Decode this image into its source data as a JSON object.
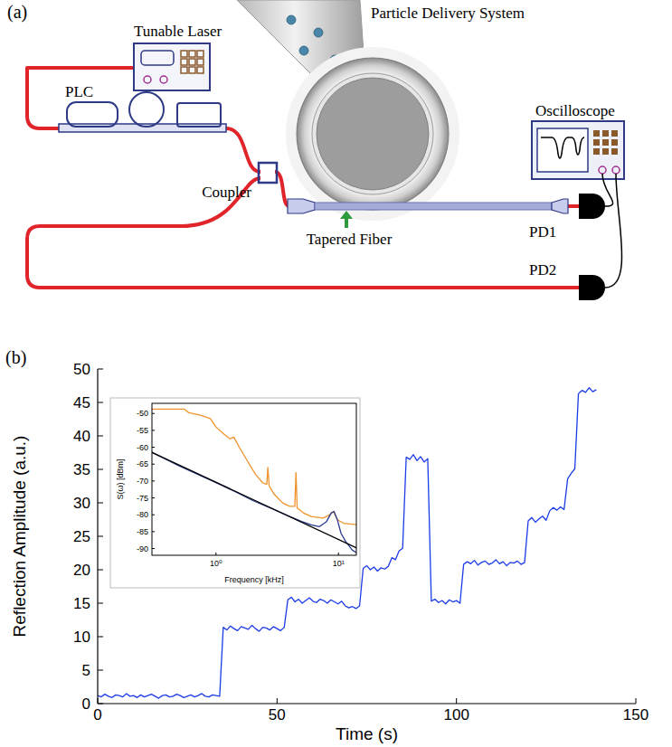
{
  "panel_labels": [
    "(a)",
    "(b)"
  ],
  "diagram": {
    "title": "Particle Delivery System",
    "labels": {
      "laser": "Tunable Laser",
      "plc": "PLC",
      "coupler": "Coupler",
      "fiber": "Tapered Fiber",
      "scope": "Oscilloscope",
      "pd1": "PD1",
      "pd2": "PD2"
    }
  },
  "chart_data": [
    {
      "type": "line",
      "x_label": "Time (s)",
      "y_label": "Reflection Amplitude (a.u.)",
      "color": "#1c3ce8",
      "grid": false,
      "xlim": [
        0,
        150
      ],
      "xticks": [
        0,
        50,
        100,
        150
      ],
      "ylim": [
        0,
        50
      ],
      "yticks": [
        0,
        5,
        10,
        15,
        20,
        25,
        30,
        35,
        40,
        45,
        50
      ],
      "x": [
        0,
        1,
        2,
        3,
        4,
        5,
        6,
        7,
        8,
        9,
        10,
        11,
        12,
        13,
        14,
        15,
        16,
        17,
        18,
        19,
        20,
        21,
        22,
        23,
        24,
        25,
        26,
        27,
        28,
        29,
        30,
        31,
        32,
        33,
        34,
        35,
        36,
        37,
        38,
        39,
        40,
        41,
        42,
        43,
        44,
        45,
        46,
        47,
        48,
        49,
        50,
        51,
        52,
        53,
        54,
        55,
        56,
        57,
        58,
        59,
        60,
        61,
        62,
        63,
        64,
        65,
        66,
        67,
        68,
        69,
        70,
        71,
        72,
        73,
        74,
        75,
        76,
        77,
        78,
        79,
        80,
        81,
        82,
        83,
        84,
        85,
        86,
        87,
        88,
        89,
        90,
        91,
        92,
        93,
        94,
        95,
        96,
        97,
        98,
        99,
        100,
        101,
        102,
        103,
        104,
        105,
        106,
        107,
        108,
        109,
        110,
        111,
        112,
        113,
        114,
        115,
        116,
        117,
        118,
        119,
        120,
        121,
        122,
        123,
        124,
        125,
        126,
        127,
        128,
        129,
        130,
        131,
        132,
        133,
        134,
        135,
        136,
        137,
        138,
        139
      ],
      "values": [
        1.2,
        1.0,
        1.4,
        1.1,
        0.9,
        1.3,
        1.2,
        1.0,
        1.5,
        1.1,
        1.2,
        0.9,
        1.3,
        1.0,
        1.2,
        1.4,
        1.1,
        0.8,
        1.2,
        1.3,
        1.0,
        1.1,
        1.4,
        1.2,
        0.9,
        1.1,
        1.3,
        1.0,
        1.2,
        1.5,
        1.1,
        1.0,
        1.3,
        1.2,
        1.1,
        11.4,
        11.0,
        11.6,
        11.2,
        10.9,
        11.5,
        11.3,
        11.1,
        11.7,
        11.2,
        10.8,
        11.4,
        11.3,
        11.0,
        11.5,
        11.2,
        10.9,
        11.4,
        15.5,
        15.9,
        15.2,
        15.6,
        15.0,
        15.4,
        15.8,
        15.3,
        15.1,
        15.6,
        15.4,
        15.0,
        15.5,
        15.2,
        14.9,
        15.3,
        14.6,
        14.3,
        14.5,
        14.2,
        14.6,
        20.2,
        20.6,
        20.0,
        20.4,
        19.8,
        20.3,
        20.1,
        20.5,
        21.8,
        21.5,
        22.8,
        23.2,
        36.8,
        36.5,
        37.2,
        36.3,
        36.9,
        36.1,
        36.6,
        15.3,
        15.6,
        15.1,
        15.4,
        14.9,
        15.5,
        15.2,
        15.4,
        15.0,
        20.8,
        21.2,
        20.9,
        21.4,
        20.7,
        21.1,
        21.3,
        20.8,
        21.0,
        21.5,
        20.9,
        21.2,
        20.6,
        21.1,
        21.0,
        21.3,
        20.8,
        21.1,
        27.3,
        27.8,
        27.1,
        27.6,
        28.0,
        27.4,
        28.8,
        29.3,
        28.9,
        29.4,
        29.0,
        33.6,
        34.4,
        35.1,
        46.3,
        46.8,
        46.5,
        47.2,
        46.6,
        46.9
      ]
    },
    {
      "type": "line",
      "x_label": "Frequency [kHz]",
      "y_label": "S(ω) [dBm]",
      "log": "x",
      "grid": false,
      "xlim": [
        0.3,
        14
      ],
      "xticks": [
        {
          "value": 1,
          "label": "10⁰"
        },
        {
          "value": 10,
          "label": "10¹"
        }
      ],
      "ylim": [
        -92,
        -47
      ],
      "yticks": [
        -90,
        -85,
        -80,
        -75,
        -70,
        -65,
        -60,
        -55,
        -50
      ],
      "series": [
        {
          "color": "#f0922b",
          "x": [
            0.28,
            0.55,
            0.6,
            0.75,
            0.9,
            1.0,
            1.15,
            1.3,
            1.4,
            1.55,
            1.8,
            2.1,
            2.4,
            2.6,
            2.65,
            2.72,
            3.0,
            3.5,
            4.0,
            4.4,
            4.5,
            4.6,
            5.2,
            6.0,
            7.5,
            8.5,
            9.1,
            9.8,
            11.0,
            14.4
          ],
          "values": [
            -48.7,
            -48.7,
            -49.8,
            -50.5,
            -51.5,
            -54,
            -56,
            -57.5,
            -57,
            -60,
            -64,
            -68,
            -70.5,
            -71,
            -66,
            -71.5,
            -74,
            -76.5,
            -77.5,
            -77.5,
            -67.5,
            -78,
            -79.5,
            -80.5,
            -81,
            -80,
            -79,
            -81.5,
            -82.5,
            -83
          ]
        },
        {
          "color": "#2b3a8f",
          "x": [
            0.28,
            0.5,
            1.0,
            1.5,
            2.0,
            3.0,
            4.0,
            5.0,
            6.0,
            7.0,
            8.0,
            8.7,
            9.2,
            9.8,
            10.5,
            11.5,
            13.0,
            14.4
          ],
          "values": [
            -61,
            -65.5,
            -70.5,
            -73.5,
            -75.8,
            -78.5,
            -80.5,
            -82,
            -83,
            -83.5,
            -82,
            -79.5,
            -79,
            -81.5,
            -85.5,
            -88,
            -90.5,
            -91.5
          ]
        },
        {
          "color": "#000000",
          "x": [
            0.28,
            14.4
          ],
          "values": [
            -61,
            -90
          ]
        }
      ]
    }
  ]
}
